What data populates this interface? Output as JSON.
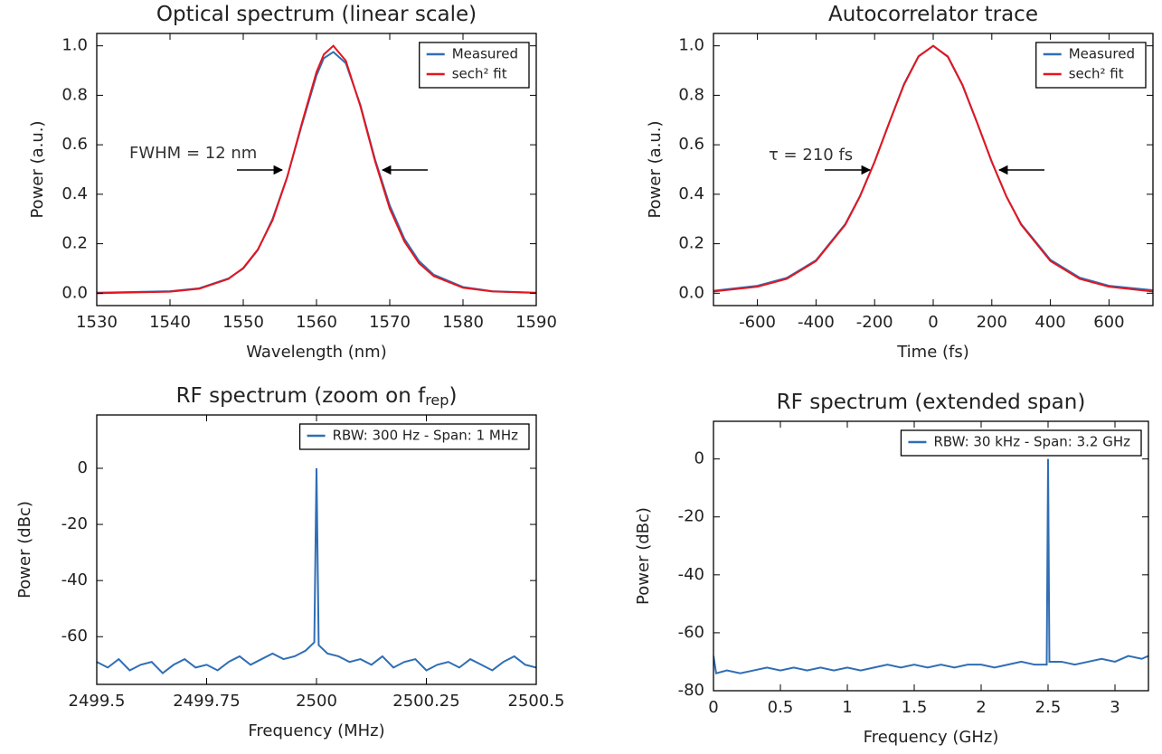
{
  "chart_data": [
    {
      "type": "line",
      "title": "Optical spectrum (linear scale)",
      "x_label": "Wavelength (nm)",
      "y_label": "Power (a.u.)",
      "x": [
        1530,
        1540,
        1544,
        1548,
        1550,
        1552,
        1554,
        1556,
        1558,
        1560,
        1561,
        1562.3,
        1564,
        1566,
        1568,
        1570,
        1572,
        1574,
        1576,
        1580,
        1584,
        1590
      ],
      "series": [
        {
          "name": "Measured",
          "color": "#2f6eb5",
          "values": [
            0.002,
            0.008,
            0.02,
            0.06,
            0.1,
            0.175,
            0.3,
            0.47,
            0.68,
            0.88,
            0.95,
            0.975,
            0.93,
            0.76,
            0.54,
            0.355,
            0.22,
            0.13,
            0.075,
            0.025,
            0.008,
            0.002
          ]
        },
        {
          "name": "sech² fit",
          "color": "#e8141c",
          "values": [
            0,
            0.006,
            0.018,
            0.058,
            0.102,
            0.177,
            0.295,
            0.469,
            0.687,
            0.894,
            0.965,
            1,
            0.94,
            0.755,
            0.533,
            0.342,
            0.209,
            0.121,
            0.069,
            0.022,
            0.007,
            0.001
          ]
        }
      ],
      "xlim": [
        1530,
        1590
      ],
      "xticks": [
        1530,
        1540,
        1550,
        1560,
        1570,
        1580,
        1590
      ],
      "ylim": [
        -0.05,
        1.05
      ],
      "yticks": [
        {
          "value": 0,
          "label": "0.0"
        },
        0.2,
        0.4,
        0.6,
        0.8,
        {
          "value": 1,
          "label": "1.0"
        }
      ],
      "grid": false,
      "legend": "upper right",
      "annotation": "FWHM = 12 nm"
    },
    {
      "type": "line",
      "title": "Autocorrelator trace",
      "x_label": "Time (fs)",
      "y_label": "Power (a.u.)",
      "x": [
        -750,
        -600,
        -500,
        -400,
        -300,
        -250,
        -200,
        -150,
        -100,
        -50,
        0,
        50,
        100,
        150,
        200,
        250,
        300,
        400,
        500,
        600,
        750
      ],
      "series": [
        {
          "name": "Measured",
          "color": "#2f6eb5",
          "values": [
            0.01,
            0.03,
            0.062,
            0.133,
            0.28,
            0.393,
            0.532,
            0.69,
            0.845,
            0.958,
            1,
            0.955,
            0.84,
            0.688,
            0.53,
            0.39,
            0.28,
            0.135,
            0.063,
            0.03,
            0.012
          ]
        },
        {
          "name": "sech² fit",
          "color": "#e8141c",
          "values": [
            0.007,
            0.026,
            0.058,
            0.13,
            0.277,
            0.391,
            0.531,
            0.689,
            0.842,
            0.957,
            1,
            0.957,
            0.842,
            0.689,
            0.531,
            0.391,
            0.277,
            0.13,
            0.058,
            0.026,
            0.007
          ]
        }
      ],
      "xlim": [
        -750,
        750
      ],
      "xticks": [
        -600,
        -400,
        -200,
        0,
        200,
        400,
        600
      ],
      "ylim": [
        -0.05,
        1.05
      ],
      "yticks": [
        {
          "value": 0,
          "label": "0.0"
        },
        0.2,
        0.4,
        0.6,
        0.8,
        {
          "value": 1,
          "label": "1.0"
        }
      ],
      "grid": false,
      "legend": "upper right",
      "annotation": "τ = 210 fs"
    },
    {
      "type": "line",
      "title": "RF spectrum (zoom on f",
      "title_sub": "rep",
      "title_end": ")",
      "x_label": "Frequency (MHz)",
      "y_label": "Power (dBc)",
      "x": [
        2499.5,
        2499.525,
        2499.55,
        2499.575,
        2499.6,
        2499.625,
        2499.65,
        2499.675,
        2499.7,
        2499.725,
        2499.75,
        2499.775,
        2499.8,
        2499.825,
        2499.85,
        2499.875,
        2499.9,
        2499.925,
        2499.95,
        2499.975,
        2499.995,
        2500,
        2500.005,
        2500.025,
        2500.05,
        2500.075,
        2500.1,
        2500.125,
        2500.15,
        2500.175,
        2500.2,
        2500.225,
        2500.25,
        2500.275,
        2500.3,
        2500.325,
        2500.35,
        2500.375,
        2500.4,
        2500.425,
        2500.45,
        2500.475,
        2500.5
      ],
      "series": [
        {
          "name": "RBW: 300 Hz - Span: 1 MHz",
          "color": "#2f6eb5",
          "values": [
            -69,
            -71,
            -68,
            -72,
            -70,
            -69,
            -73,
            -70,
            -68,
            -71,
            -70,
            -72,
            -69,
            -67,
            -70,
            -68,
            -66,
            -68,
            -67,
            -65,
            -62,
            0,
            -63,
            -66,
            -67,
            -69,
            -68,
            -70,
            -67,
            -71,
            -69,
            -68,
            -72,
            -70,
            -69,
            -71,
            -68,
            -70,
            -72,
            -69,
            -67,
            -70,
            -71
          ]
        }
      ],
      "xlim": [
        2499.5,
        2500.5
      ],
      "xticks": [
        2499.5,
        2499.75,
        2500,
        2500.25,
        2500.5
      ],
      "ylim": [
        -77,
        19
      ],
      "yticks": [
        -60,
        -40,
        -20,
        0
      ],
      "grid": false,
      "legend": "upper right"
    },
    {
      "type": "line",
      "title": "RF spectrum (extended span)",
      "x_label": "Frequency (GHz)",
      "y_label": "Power (dBc)",
      "x": [
        0,
        0.02,
        0.1,
        0.2,
        0.3,
        0.4,
        0.5,
        0.6,
        0.7,
        0.8,
        0.9,
        1,
        1.1,
        1.2,
        1.3,
        1.4,
        1.5,
        1.6,
        1.7,
        1.8,
        1.9,
        2,
        2.1,
        2.2,
        2.3,
        2.4,
        2.49,
        2.5,
        2.51,
        2.6,
        2.7,
        2.8,
        2.9,
        3,
        3.1,
        3.2,
        3.25
      ],
      "series": [
        {
          "name": "RBW: 30 kHz - Span: 3.2 GHz",
          "color": "#2f6eb5",
          "values": [
            -68,
            -74,
            -73,
            -74,
            -73,
            -72,
            -73,
            -72,
            -73,
            -72,
            -73,
            -72,
            -73,
            -72,
            -71,
            -72,
            -71,
            -72,
            -71,
            -72,
            -71,
            -71,
            -72,
            -71,
            -70,
            -71,
            -71,
            0,
            -70,
            -70,
            -71,
            -70,
            -69,
            -70,
            -68,
            -69,
            -68
          ]
        }
      ],
      "xlim": [
        0,
        3.25
      ],
      "xticks": [
        0,
        0.5,
        1,
        1.5,
        2,
        2.5,
        3
      ],
      "ylim": [
        -80,
        13
      ],
      "yticks": [
        -80,
        -60,
        -40,
        -20,
        0
      ],
      "grid": false,
      "legend": "upper right"
    }
  ]
}
